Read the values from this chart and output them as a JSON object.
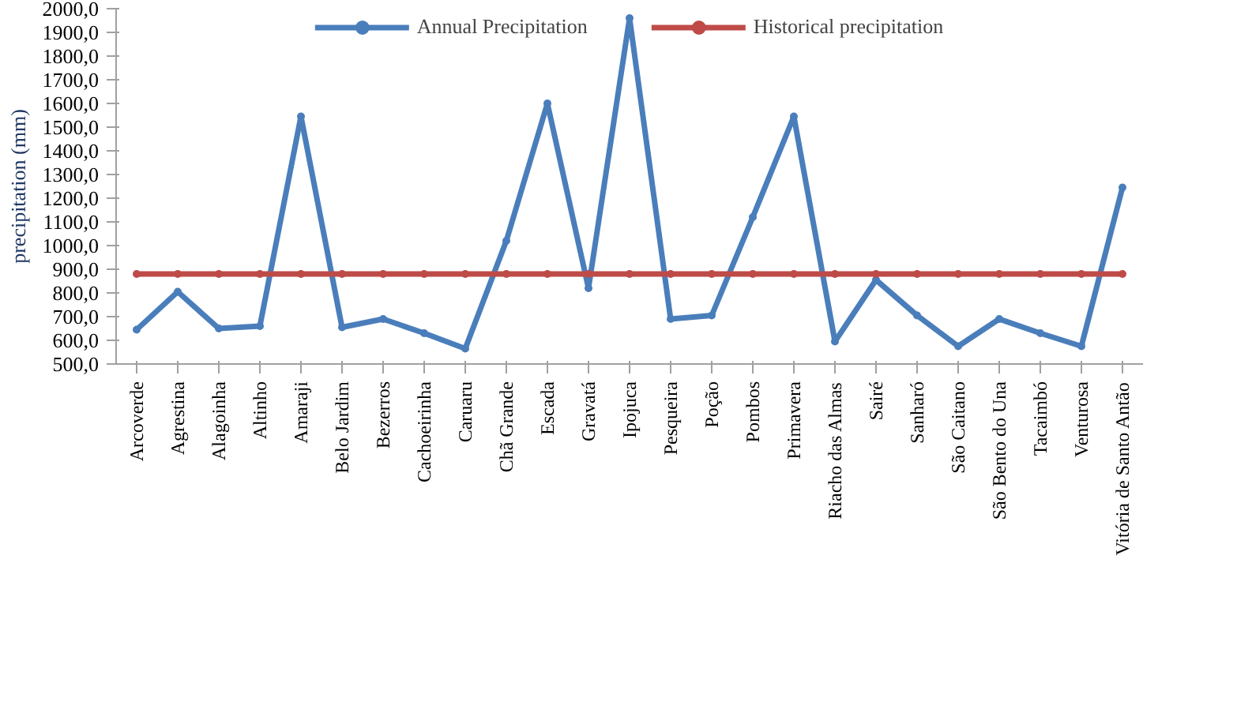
{
  "chart_data": {
    "type": "line",
    "ylabel": "precipitation (mm)",
    "categories": [
      "Arcoverde",
      "Agrestina",
      "Alagoinha",
      "Altinho",
      "Amaraji",
      "Belo Jardim",
      "Bezerros",
      "Cachoeirinha",
      "Caruaru",
      "Chã Grande",
      "Escada",
      "Gravatá",
      "Ipojuca",
      "Pesqueira",
      "Poção",
      "Pombos",
      "Primavera",
      "Riacho das Almas",
      "Sairé",
      "Sanharó",
      "São Caitano",
      "São Bento do Una",
      "Tacaimbó",
      "Venturosa",
      "Vitória de Santo Antão"
    ],
    "series": [
      {
        "name": "Annual Precipitation",
        "color": "#4a7ebb",
        "values": [
          645,
          805,
          650,
          660,
          1545,
          655,
          690,
          630,
          565,
          1020,
          1600,
          820,
          1960,
          690,
          705,
          1120,
          1545,
          595,
          855,
          705,
          575,
          690,
          630,
          575,
          1245
        ]
      },
      {
        "name": "Historical precipitation",
        "color": "#be4b48",
        "values": [
          880,
          880,
          880,
          880,
          880,
          880,
          880,
          880,
          880,
          880,
          880,
          880,
          880,
          880,
          880,
          880,
          880,
          880,
          880,
          880,
          880,
          880,
          880,
          880,
          880
        ]
      }
    ],
    "ylim": [
      500,
      2000
    ],
    "yticks": [
      {
        "value": 500,
        "label": "500,0"
      },
      {
        "value": 600,
        "label": "600,0"
      },
      {
        "value": 700,
        "label": "700,0"
      },
      {
        "value": 800,
        "label": "800,0"
      },
      {
        "value": 900,
        "label": "900,0"
      },
      {
        "value": 1000,
        "label": "1000,0"
      },
      {
        "value": 1100,
        "label": "1100,0"
      },
      {
        "value": 1200,
        "label": "1200,0"
      },
      {
        "value": 1300,
        "label": "1300,0"
      },
      {
        "value": 1400,
        "label": "1400,0"
      },
      {
        "value": 1500,
        "label": "1500,0"
      },
      {
        "value": 1600,
        "label": "1600,0"
      },
      {
        "value": 1700,
        "label": "1700,0"
      },
      {
        "value": 1800,
        "label": "1800,0"
      },
      {
        "value": 1900,
        "label": "1900,0"
      },
      {
        "value": 2000,
        "label": "2000,0"
      }
    ],
    "grid": false,
    "legend": "top",
    "marker": "circle",
    "line_style": "solid"
  }
}
